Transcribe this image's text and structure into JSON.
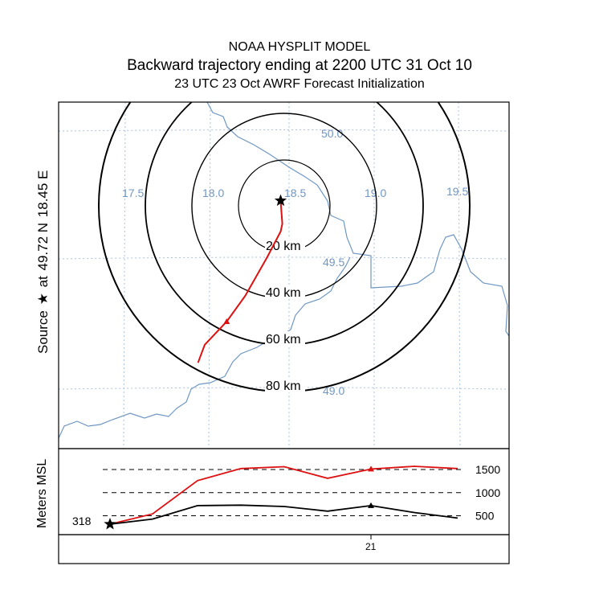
{
  "header": {
    "model": "NOAA HYSPLIT MODEL",
    "trajectory": "Backward trajectory ending at 2200 UTC 31 Oct 10",
    "meteo": "23 UTC 23 Oct    AWRF  Forecast Initialization"
  },
  "source": {
    "star": "★",
    "label": "Source",
    "at": "at",
    "lat": "49.72 N",
    "lon": "18.45 E"
  },
  "map": {
    "lon_labels": [
      "17.5",
      "18.0",
      "18.5",
      "19.0",
      "19.5"
    ],
    "lat_labels": [
      "50.0",
      "49.5",
      "49.0"
    ],
    "ring_labels": [
      "20 km",
      "40 km",
      "60 km",
      "80 km"
    ],
    "trajectory_color": "#dd1111",
    "border_color": "#6f97c4",
    "grid_color": "#a9c2dd",
    "trajectory_lon": [
      18.45,
      18.46,
      18.45,
      18.37,
      18.24,
      18.13,
      18.0,
      17.96
    ],
    "trajectory_lat": [
      49.72,
      49.63,
      49.6,
      49.5,
      49.35,
      49.25,
      49.16,
      49.09
    ]
  },
  "height_panel": {
    "ylabel": "Meters MSL",
    "start_label": "318",
    "levels": [
      "1500",
      "1000",
      "500"
    ],
    "level_values": [
      1500,
      1000,
      500
    ],
    "x_tick_label": "21",
    "series": [
      {
        "values": [
          318,
          540,
          1260,
          1520,
          1560,
          1310,
          1510,
          1570,
          1520
        ],
        "color": "#dd1111"
      },
      {
        "values": [
          318,
          430,
          720,
          730,
          700,
          600,
          720,
          570,
          450
        ],
        "color": "#000000"
      }
    ]
  }
}
